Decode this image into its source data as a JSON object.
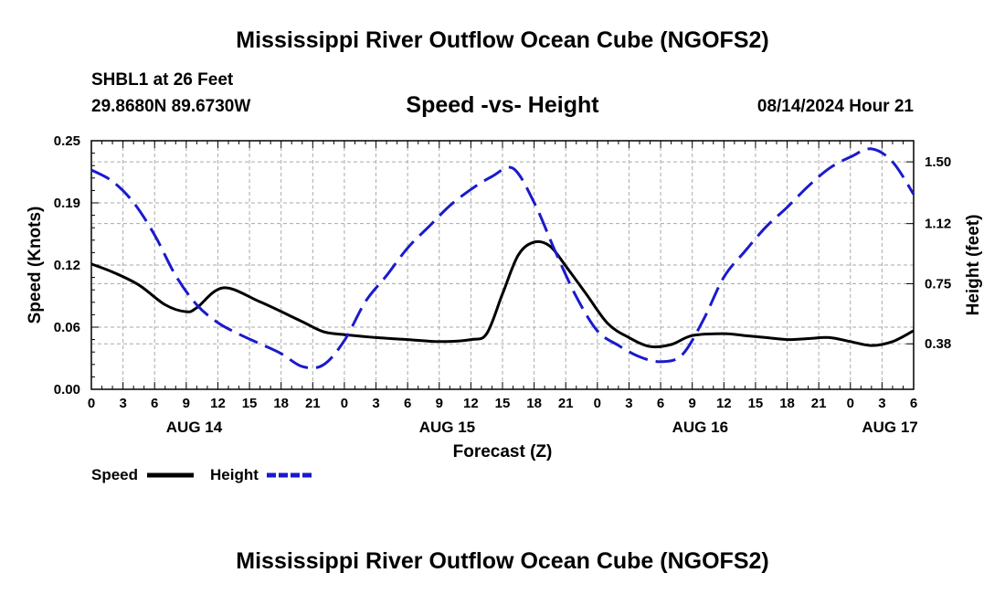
{
  "header": {
    "title": "Mississippi River Outflow Ocean Cube (NGOFS2)",
    "station": "SHBL1 at 26 Feet",
    "coordinates": "29.8680N  89.6730W",
    "chart_title": "Speed -vs- Height",
    "run_time": "08/14/2024 Hour 21"
  },
  "footer": {
    "title": "Mississippi River Outflow Ocean Cube (NGOFS2)"
  },
  "colors": {
    "speed": "#000000",
    "height": "#1a1acc",
    "grid": "#aaaaaa"
  },
  "chart_data": {
    "type": "line",
    "title": "Speed -vs- Height",
    "xlabel": "Forecast (Z)",
    "ylabel_left": "Speed (Knots)",
    "ylabel_right": "Height (feet)",
    "x_unit": "hours from 08/14/2024 00Z",
    "xlim": [
      0,
      78
    ],
    "ylim_left": [
      0,
      0.25
    ],
    "ylim_right": [
      0.1,
      1.63
    ],
    "yticks_left": [
      "0.00",
      "0.06",
      "0.12",
      "0.19",
      "0.25"
    ],
    "yticks_left_values": [
      0,
      0.0625,
      0.125,
      0.1875,
      0.25
    ],
    "yticks_right": [
      "0.38",
      "0.75",
      "1.12",
      "1.50"
    ],
    "yticks_right_values": [
      0.38,
      0.75,
      1.12,
      1.5
    ],
    "xticks": [
      "0",
      "3",
      "6",
      "9",
      "12",
      "15",
      "18",
      "21",
      "0",
      "3",
      "6",
      "9",
      "12",
      "15",
      "18",
      "21",
      "0",
      "3",
      "6",
      "9",
      "12",
      "15",
      "18",
      "21",
      "0",
      "3",
      "6"
    ],
    "xticks_values": [
      0,
      3,
      6,
      9,
      12,
      15,
      18,
      21,
      24,
      27,
      30,
      33,
      36,
      39,
      42,
      45,
      48,
      51,
      54,
      57,
      60,
      63,
      66,
      69,
      72,
      75,
      78
    ],
    "date_labels": [
      {
        "label": "AUG 14",
        "x": 9.75
      },
      {
        "label": "AUG 15",
        "x": 33.75
      },
      {
        "label": "AUG 16",
        "x": 57.75
      },
      {
        "label": "AUG 17",
        "x": 75.75
      }
    ],
    "legend": [
      {
        "name": "Speed",
        "style": "solid"
      },
      {
        "name": "Height",
        "style": "dashed"
      }
    ],
    "series": [
      {
        "name": "Speed",
        "axis": "left",
        "style": "solid",
        "x": [
          0,
          2,
          4.5,
          7,
          9,
          10,
          12.5,
          16,
          20,
          22,
          24,
          27,
          30,
          33,
          36,
          37.5,
          39,
          40.5,
          42,
          43.5,
          45,
          47,
          49,
          51,
          53,
          55,
          57,
          60,
          62,
          64,
          66,
          68,
          70,
          72,
          74,
          76,
          78
        ],
        "y": [
          0.126,
          0.118,
          0.105,
          0.085,
          0.078,
          0.082,
          0.102,
          0.088,
          0.068,
          0.058,
          0.055,
          0.052,
          0.05,
          0.048,
          0.05,
          0.056,
          0.096,
          0.135,
          0.148,
          0.144,
          0.124,
          0.095,
          0.066,
          0.052,
          0.043,
          0.045,
          0.054,
          0.056,
          0.054,
          0.052,
          0.05,
          0.051,
          0.052,
          0.048,
          0.044,
          0.048,
          0.059
        ]
      },
      {
        "name": "Height",
        "axis": "right",
        "style": "dashed",
        "x": [
          0,
          2,
          4,
          6,
          8,
          10,
          12,
          14,
          16,
          18,
          20,
          22,
          24,
          26,
          28,
          30,
          32,
          34,
          36,
          38,
          40,
          42,
          44,
          46,
          48,
          50,
          52,
          54,
          56,
          58,
          60,
          62,
          64,
          66,
          68,
          70,
          72,
          74,
          76,
          78
        ],
        "y": [
          1.45,
          1.38,
          1.25,
          1.05,
          0.8,
          0.62,
          0.51,
          0.44,
          0.38,
          0.32,
          0.24,
          0.25,
          0.4,
          0.64,
          0.8,
          0.97,
          1.1,
          1.23,
          1.33,
          1.41,
          1.46,
          1.25,
          0.95,
          0.67,
          0.46,
          0.37,
          0.3,
          0.27,
          0.31,
          0.52,
          0.79,
          0.95,
          1.1,
          1.22,
          1.35,
          1.46,
          1.53,
          1.58,
          1.5,
          1.3
        ]
      }
    ]
  }
}
